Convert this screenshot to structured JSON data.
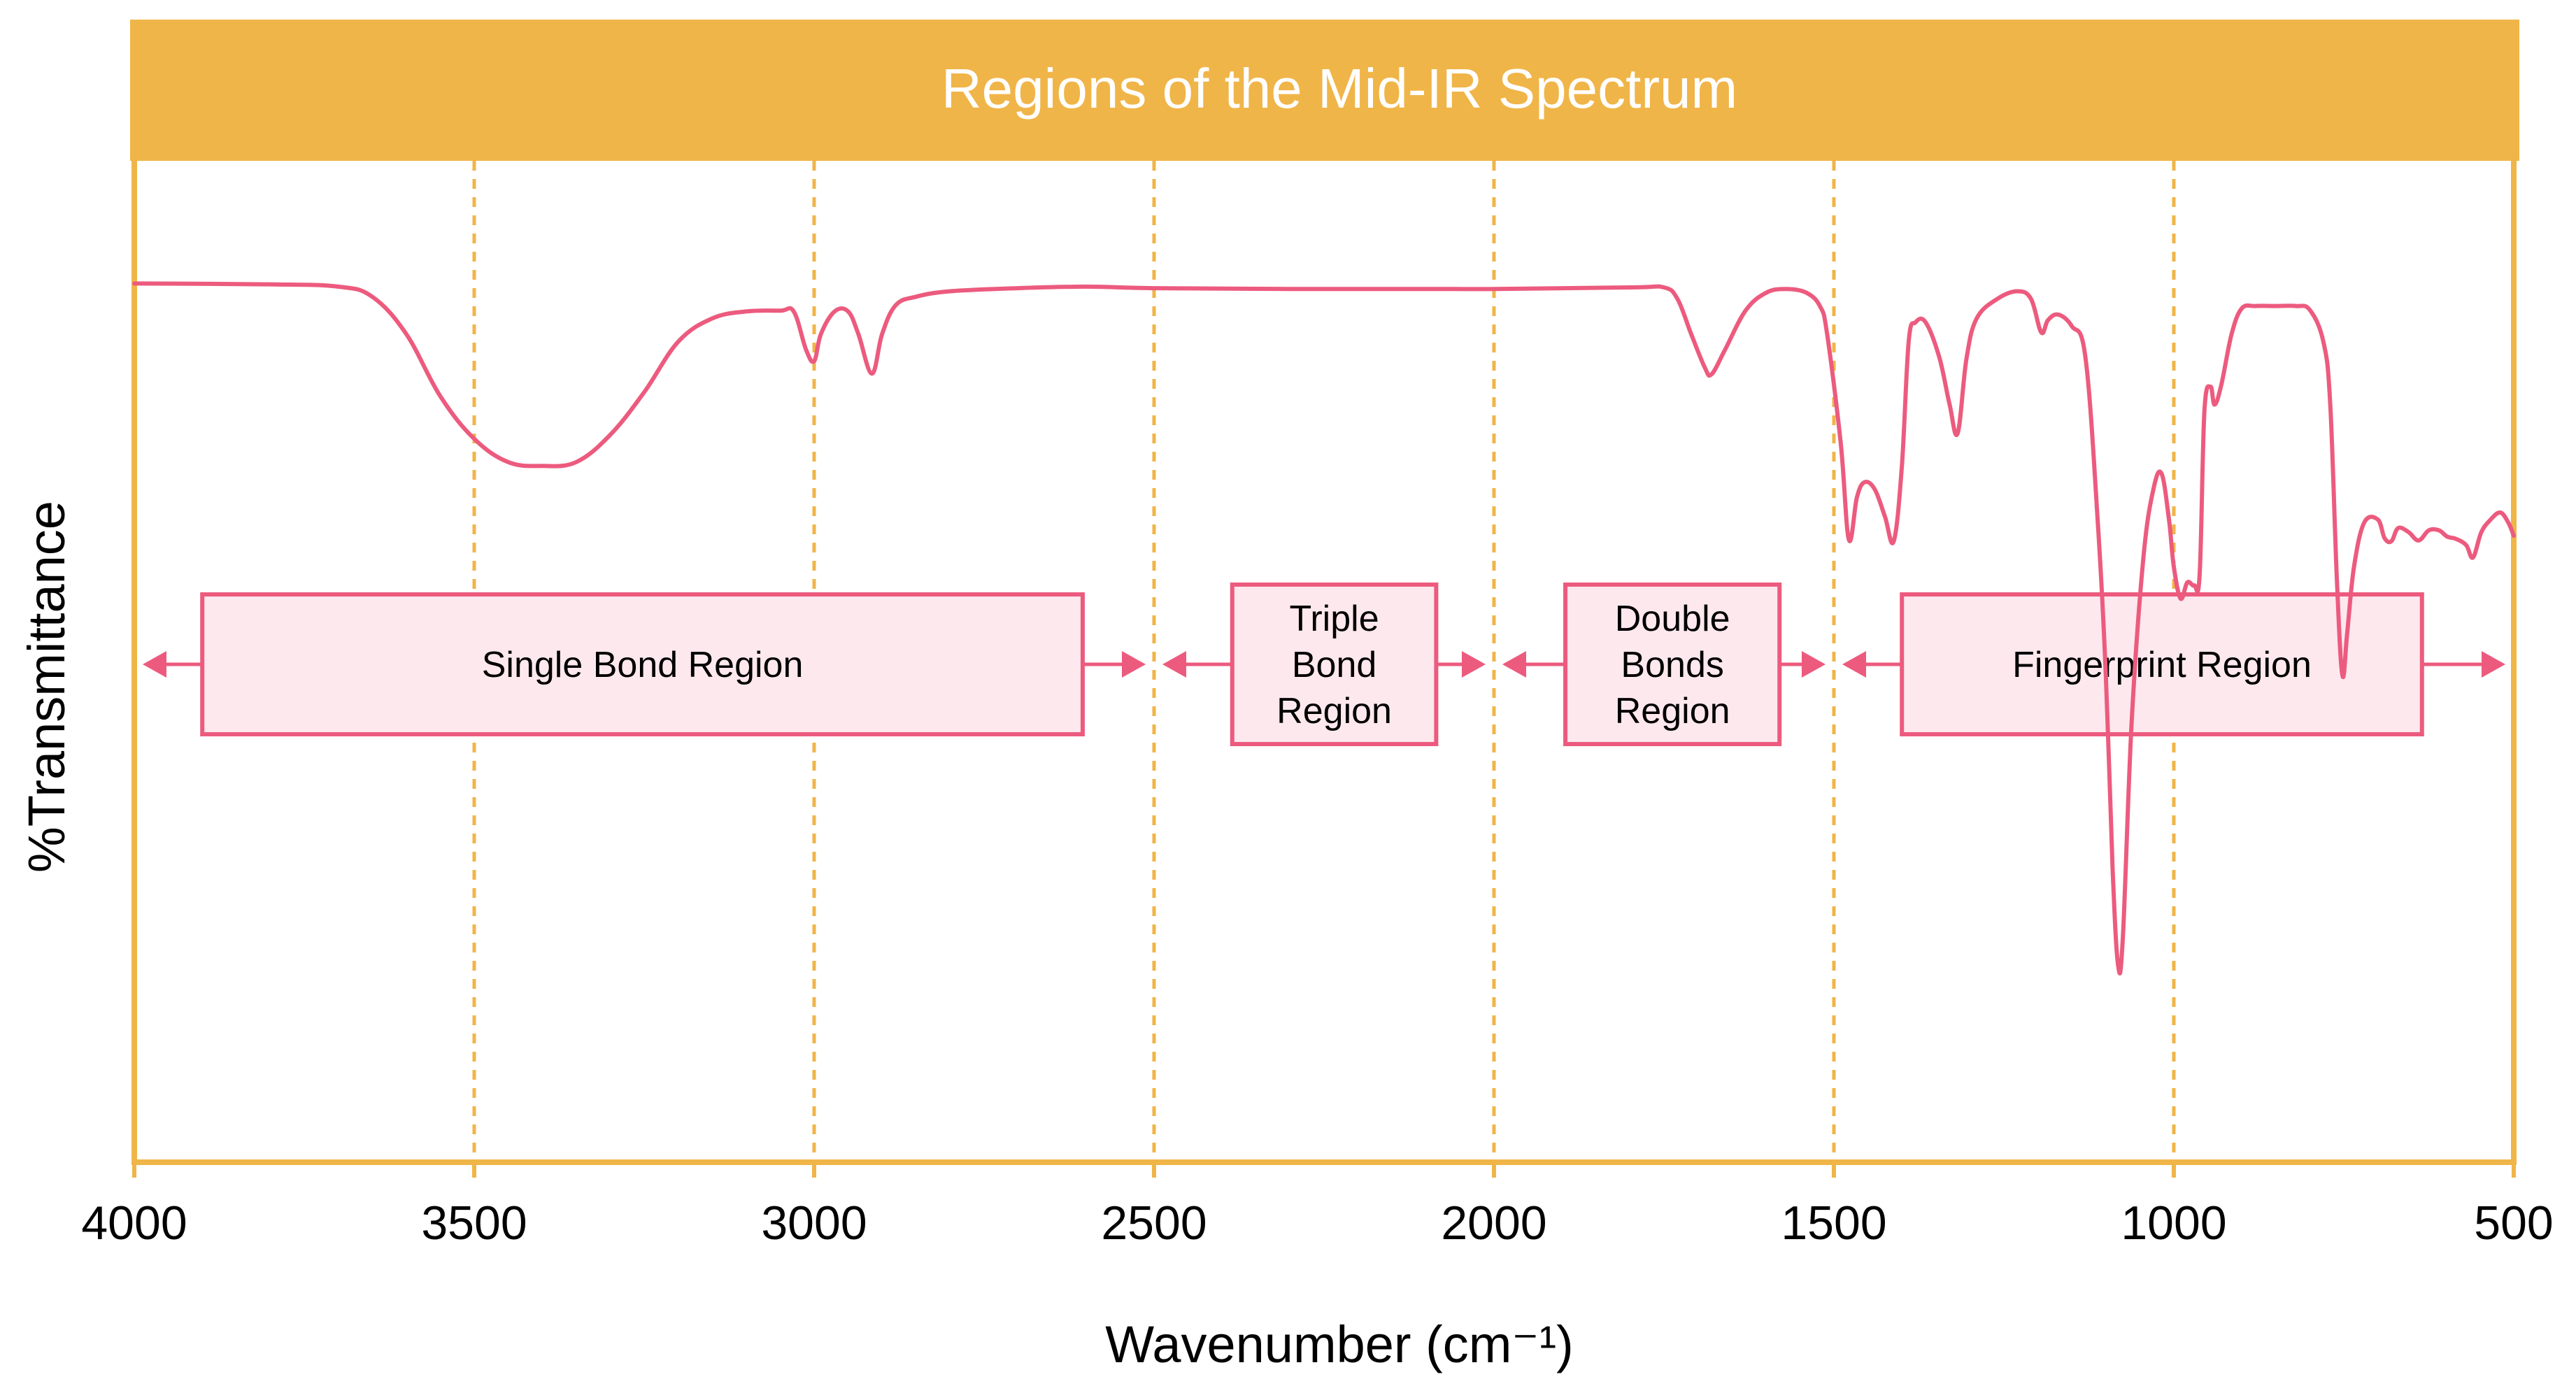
{
  "chart_data": {
    "type": "line",
    "title": "Regions of the Mid-IR Spectrum",
    "xlabel": "Wavenumber (cm⁻¹)",
    "ylabel": "%Transmittance",
    "x_ticks": [
      "4000",
      "3500",
      "3000",
      "2500",
      "2000",
      "1500",
      "1000",
      "500"
    ],
    "x_tick_values": [
      4000,
      3500,
      3000,
      2500,
      2000,
      1500,
      1000,
      500
    ],
    "xlim": [
      4000,
      500
    ],
    "ylim": [
      0,
      100
    ],
    "x_reversed": true,
    "gridlines_x": [
      3500,
      3000,
      2500,
      2000,
      1500,
      1000
    ],
    "series": [
      {
        "name": "IR spectrum",
        "color": "#EC5B7E",
        "points": [
          [
            4000,
            90.5
          ],
          [
            3800,
            90.4
          ],
          [
            3700,
            90.1
          ],
          [
            3650,
            88.8
          ],
          [
            3600,
            84
          ],
          [
            3550,
            76
          ],
          [
            3500,
            70.5
          ],
          [
            3450,
            67.5
          ],
          [
            3400,
            67
          ],
          [
            3350,
            67.5
          ],
          [
            3300,
            71
          ],
          [
            3250,
            76.5
          ],
          [
            3200,
            83
          ],
          [
            3150,
            86
          ],
          [
            3100,
            86.9
          ],
          [
            3050,
            87
          ],
          [
            3030,
            86.9
          ],
          [
            3012,
            82
          ],
          [
            3000,
            80.5
          ],
          [
            2990,
            84
          ],
          [
            2970,
            86.9
          ],
          [
            2950,
            86.9
          ],
          [
            2935,
            84
          ],
          [
            2915,
            78.9
          ],
          [
            2900,
            84
          ],
          [
            2880,
            87.7
          ],
          [
            2850,
            88.8
          ],
          [
            2800,
            89.5
          ],
          [
            2700,
            89.9
          ],
          [
            2600,
            90.1
          ],
          [
            2500,
            89.9
          ],
          [
            2300,
            89.8
          ],
          [
            2100,
            89.8
          ],
          [
            2000,
            89.8
          ],
          [
            1800,
            90
          ],
          [
            1750,
            90
          ],
          [
            1730,
            88.5
          ],
          [
            1710,
            84
          ],
          [
            1690,
            79.7
          ],
          [
            1680,
            78.8
          ],
          [
            1660,
            82
          ],
          [
            1630,
            87
          ],
          [
            1600,
            89.3
          ],
          [
            1570,
            89.8
          ],
          [
            1540,
            89.3
          ],
          [
            1520,
            87.5
          ],
          [
            1510,
            84
          ],
          [
            1490,
            70
          ],
          [
            1478,
            57.5
          ],
          [
            1466,
            63
          ],
          [
            1455,
            64.9
          ],
          [
            1440,
            64
          ],
          [
            1425,
            60.5
          ],
          [
            1412,
            57.3
          ],
          [
            1400,
            67
          ],
          [
            1390,
            83
          ],
          [
            1380,
            85.5
          ],
          [
            1365,
            85.5
          ],
          [
            1345,
            81
          ],
          [
            1330,
            75
          ],
          [
            1318,
            71.2
          ],
          [
            1305,
            80.8
          ],
          [
            1290,
            86
          ],
          [
            1260,
            88.5
          ],
          [
            1230,
            89.5
          ],
          [
            1210,
            88.5
          ],
          [
            1195,
            84.2
          ],
          [
            1185,
            85.8
          ],
          [
            1170,
            86.5
          ],
          [
            1150,
            85
          ],
          [
            1130,
            81
          ],
          [
            1112,
            60
          ],
          [
            1100,
            40
          ],
          [
            1090,
            15
          ],
          [
            1082,
            2.7
          ],
          [
            1075,
            6.2
          ],
          [
            1062,
            34
          ],
          [
            1045,
            55
          ],
          [
            1030,
            64
          ],
          [
            1018,
            66
          ],
          [
            1007,
            60
          ],
          [
            1000,
            54
          ],
          [
            990,
            49.9
          ],
          [
            980,
            52
          ],
          [
            970,
            51.6
          ],
          [
            962,
            53
          ],
          [
            955,
            74
          ],
          [
            946,
            77.2
          ],
          [
            940,
            74.9
          ],
          [
            930,
            77.5
          ],
          [
            915,
            84
          ],
          [
            900,
            87.3
          ],
          [
            880,
            87.6
          ],
          [
            850,
            87.6
          ],
          [
            820,
            87.6
          ],
          [
            800,
            87.1
          ],
          [
            780,
            83
          ],
          [
            770,
            75
          ],
          [
            760,
            52
          ],
          [
            752,
            40
          ],
          [
            745,
            45.5
          ],
          [
            735,
            54
          ],
          [
            720,
            59.7
          ],
          [
            700,
            60.1
          ],
          [
            690,
            57.7
          ],
          [
            680,
            57.3
          ],
          [
            670,
            59
          ],
          [
            655,
            58.5
          ],
          [
            640,
            57.4
          ],
          [
            625,
            58.7
          ],
          [
            610,
            58.7
          ],
          [
            598,
            57.9
          ],
          [
            585,
            57.6
          ],
          [
            570,
            56.8
          ],
          [
            560,
            55.2
          ],
          [
            548,
            58.4
          ],
          [
            535,
            60
          ],
          [
            520,
            61
          ],
          [
            508,
            59.7
          ],
          [
            500,
            58
          ]
        ]
      }
    ],
    "regions": [
      {
        "lines": [
          "Single Bond Region"
        ],
        "from": 4000,
        "to": 2500,
        "box_from": 3900,
        "box_to": 2605
      },
      {
        "lines": [
          "Triple",
          "Bond",
          "Region"
        ],
        "from": 2500,
        "to": 2000,
        "box_from": 2385,
        "box_to": 2085
      },
      {
        "lines": [
          "Double",
          "Bonds",
          "Region"
        ],
        "from": 2000,
        "to": 1500,
        "box_from": 1895,
        "box_to": 1580
      },
      {
        "lines": [
          "Fingerprint Region"
        ],
        "from": 1500,
        "to": 500,
        "box_from": 1400,
        "box_to": 635
      }
    ]
  },
  "colors": {
    "header": "#F0B548",
    "frame": "#F0B548",
    "gridline": "#F0B548",
    "line": "#EC5B7E",
    "box_fill": "#FDE8EE",
    "box_stroke": "#EC5B7E",
    "arrow": "#EC5B7E",
    "title_text": "#FFFFFF",
    "text": "#000000"
  }
}
